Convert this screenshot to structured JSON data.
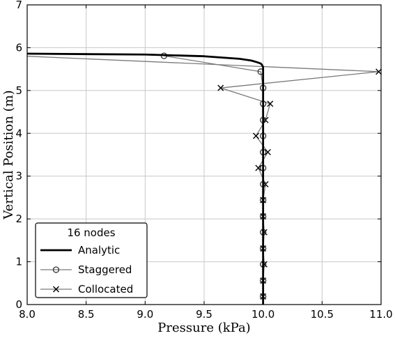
{
  "chart_data": {
    "type": "line",
    "xlabel": "Pressure (kPa)",
    "ylabel": "Vertical Position (m)",
    "xlim": [
      8.0,
      11.0
    ],
    "ylim": [
      0,
      7
    ],
    "xticks": [
      "8.0",
      "8.5",
      "9.0",
      "9.5",
      "10.0",
      "10.5",
      "11.0"
    ],
    "yticks": [
      "0",
      "1",
      "2",
      "3",
      "4",
      "5",
      "6",
      "7"
    ],
    "grid": true,
    "legend": {
      "title": "16 nodes",
      "placement": "lower-left"
    },
    "series": [
      {
        "name": "Analytic",
        "style": "solid-thick",
        "color": "#000000",
        "marker": "none",
        "x": [
          8.0,
          9.0,
          9.5,
          9.8,
          9.9,
          9.95,
          9.98,
          9.99,
          10.0,
          10.0
        ],
        "y": [
          5.86,
          5.84,
          5.8,
          5.74,
          5.7,
          5.66,
          5.63,
          5.6,
          5.55,
          0.0
        ]
      },
      {
        "name": "Staggered",
        "style": "thin",
        "color": "#7a7a7a",
        "marker": "circle",
        "x": [
          9.16,
          9.98,
          10.0,
          10.0,
          10.0,
          10.0,
          10.0,
          10.0,
          10.0,
          10.0,
          10.0,
          10.0,
          10.0,
          10.0,
          10.0,
          10.0
        ],
        "y": [
          5.81,
          5.44,
          5.06,
          4.69,
          4.31,
          3.94,
          3.56,
          3.19,
          2.81,
          2.44,
          2.06,
          1.69,
          1.31,
          0.94,
          0.56,
          0.19
        ]
      },
      {
        "name": "Collocated",
        "style": "thin",
        "color": "#7a7a7a",
        "marker": "x",
        "x": [
          8.0,
          10.98,
          9.64,
          10.06,
          10.02,
          9.94,
          10.04,
          9.96,
          10.02,
          10.0,
          10.0,
          10.01,
          10.0,
          10.01,
          10.0,
          10.0,
          10.0
        ],
        "y": [
          5.8,
          5.44,
          5.06,
          4.69,
          4.31,
          3.94,
          3.56,
          3.19,
          2.81,
          2.44,
          2.06,
          1.69,
          1.31,
          0.94,
          0.56,
          0.19,
          0.0
        ]
      }
    ]
  }
}
